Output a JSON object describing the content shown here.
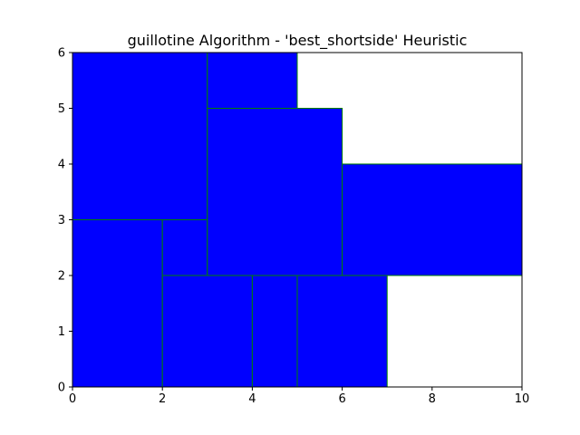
{
  "chart_data": {
    "type": "rectangle_packing",
    "title": "guillotine Algorithm - 'best_shortside' Heuristic",
    "xlabel": "",
    "ylabel": "",
    "xlim": [
      0,
      10
    ],
    "ylim": [
      0,
      6
    ],
    "xticks": [
      "0",
      "2",
      "4",
      "6",
      "8",
      "10"
    ],
    "yticks": [
      "0",
      "1",
      "2",
      "3",
      "4",
      "5",
      "6"
    ],
    "grid": false,
    "fill_color": "#0000ff",
    "edge_color": "#008000",
    "rectangles": [
      {
        "x": 0,
        "y": 0,
        "w": 2,
        "h": 3
      },
      {
        "x": 2,
        "y": 0,
        "w": 2,
        "h": 2
      },
      {
        "x": 4,
        "y": 0,
        "w": 1,
        "h": 2
      },
      {
        "x": 5,
        "y": 0,
        "w": 2,
        "h": 2
      },
      {
        "x": 2,
        "y": 2,
        "w": 1,
        "h": 1
      },
      {
        "x": 0,
        "y": 3,
        "w": 3,
        "h": 3
      },
      {
        "x": 3,
        "y": 2,
        "w": 3,
        "h": 3
      },
      {
        "x": 3,
        "y": 5,
        "w": 2,
        "h": 1
      },
      {
        "x": 6,
        "y": 2,
        "w": 4,
        "h": 2
      }
    ]
  }
}
